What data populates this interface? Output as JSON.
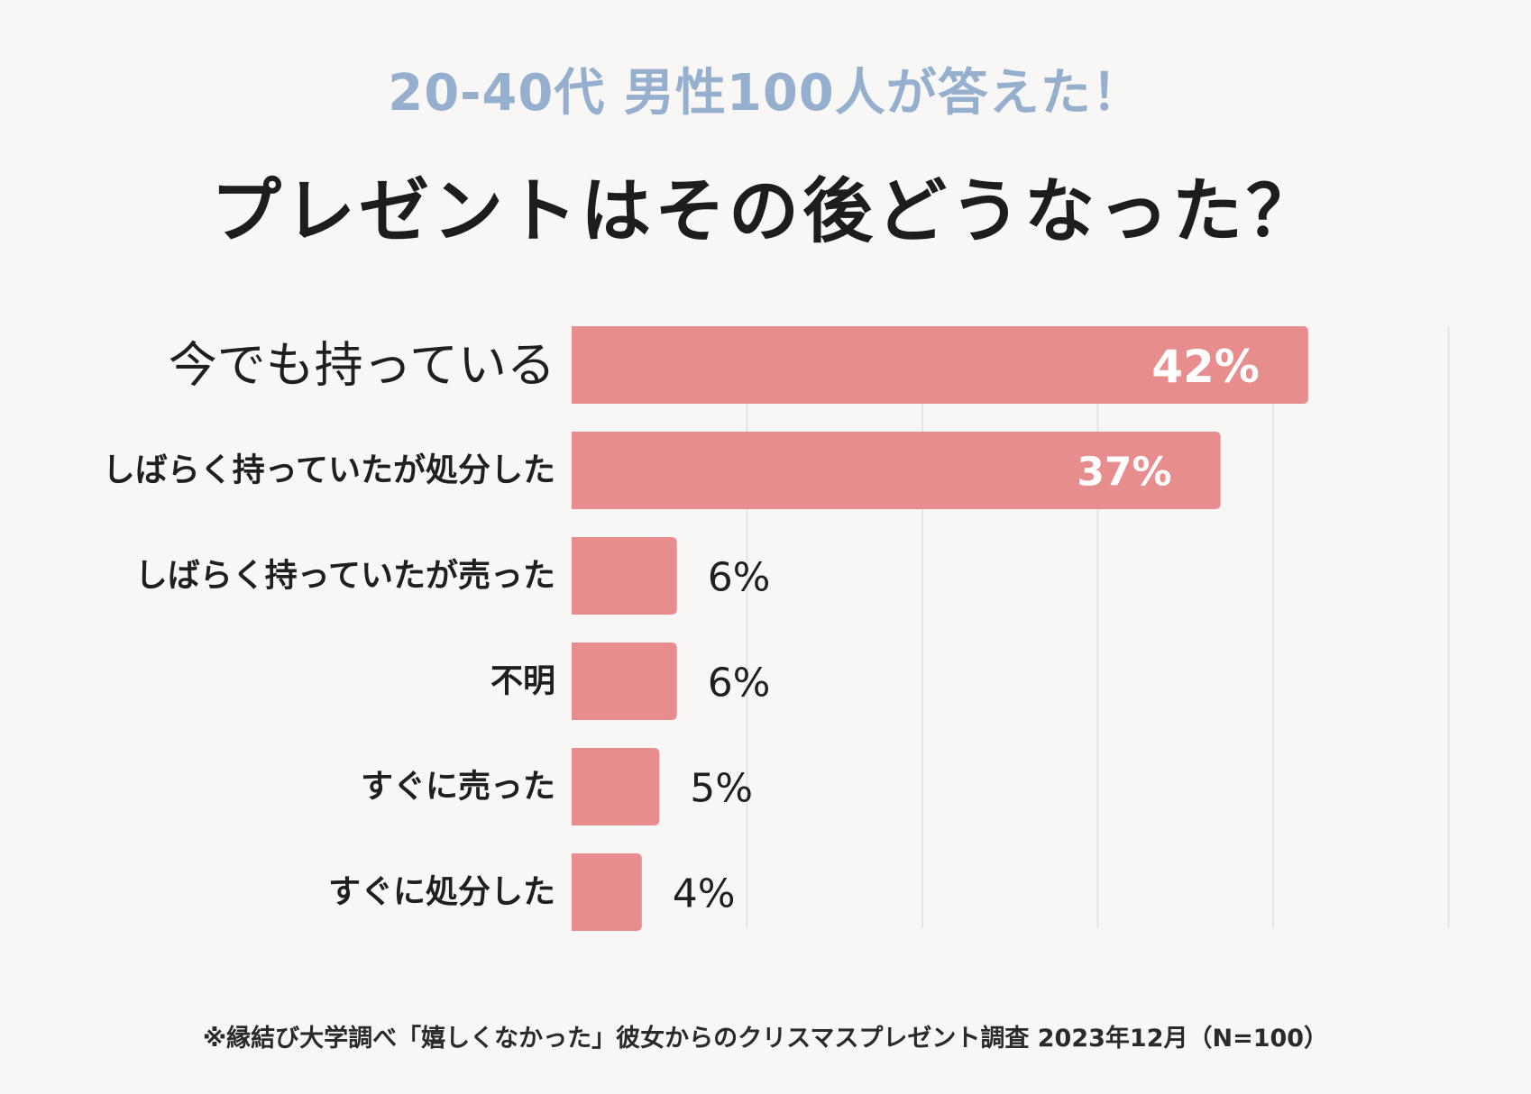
{
  "header": {
    "subtitle": "20-40代 男性100人が答えた！",
    "title": "プレゼントはその後どうなった？"
  },
  "footnote": "※縁結び大学調べ「嬉しくなかった」彼女からのクリスマスプレゼント調査 2023年12月（N=100）",
  "colors": {
    "bar": "#e88d8d",
    "grid": "#dddddd",
    "inside_label": "#ffffff",
    "outside_label": "#1f1f1f",
    "category_label": "#1f1f1f"
  },
  "chart_data": {
    "type": "bar",
    "orientation": "horizontal",
    "title": "プレゼントはその後どうなった？",
    "subtitle": "20-40代 男性100人が答えた！",
    "categories": [
      "今でも持っている",
      "しばらく持っていたが処分した",
      "しばらく持っていたが売った",
      "不明",
      "すぐに売った",
      "すぐに処分した"
    ],
    "values": [
      42,
      37,
      6,
      6,
      5,
      4
    ],
    "value_labels": [
      "42%",
      "37%",
      "6%",
      "6%",
      "5%",
      "4%"
    ],
    "unit": "%",
    "xlim": [
      0,
      50
    ],
    "grid": true,
    "grid_step": 10,
    "xlabel": "",
    "ylabel": ""
  }
}
